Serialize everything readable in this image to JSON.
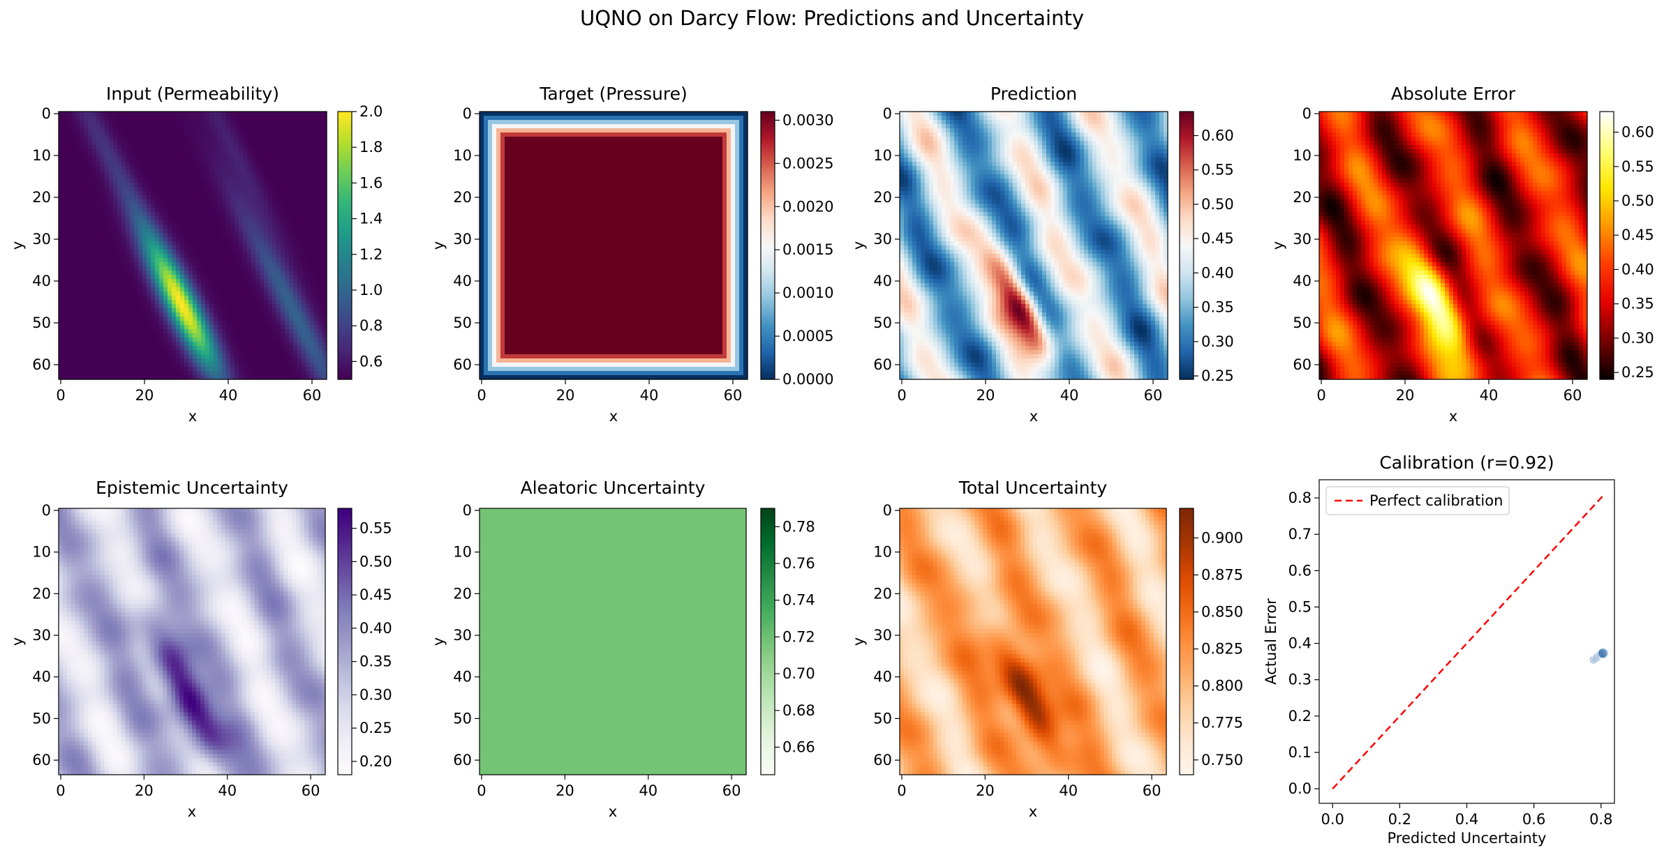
{
  "figure": {
    "title": "UQNO on Darcy Flow: Predictions and Uncertainty"
  },
  "chart_data": [
    {
      "type": "heatmap",
      "title": "Input (Permeability)",
      "xlabel": "x",
      "ylabel": "y",
      "xticks": [
        "0",
        "20",
        "40",
        "60"
      ],
      "yticks": [
        "0",
        "10",
        "20",
        "30",
        "40",
        "50",
        "60"
      ],
      "grid_size": 64,
      "colormap": "viridis",
      "colorbar_range": [
        0.5,
        2.0
      ],
      "colorbar_ticks": [
        "0.6",
        "0.8",
        "1.0",
        "1.2",
        "1.4",
        "1.6",
        "1.8",
        "2.0"
      ],
      "pattern": "input",
      "grid": false
    },
    {
      "type": "heatmap",
      "title": "Target (Pressure)",
      "xlabel": "x",
      "ylabel": "y",
      "xticks": [
        "0",
        "20",
        "40",
        "60"
      ],
      "yticks": [
        "0",
        "10",
        "20",
        "30",
        "40",
        "50",
        "60"
      ],
      "grid_size": 64,
      "colormap": "RdBu_r",
      "colorbar_range": [
        0.0,
        0.0031
      ],
      "colorbar_ticks": [
        "0.0000",
        "0.0005",
        "0.0010",
        "0.0015",
        "0.0020",
        "0.0025",
        "0.0030"
      ],
      "pattern": "target",
      "grid": false
    },
    {
      "type": "heatmap",
      "title": "Prediction",
      "xlabel": "x",
      "ylabel": "y",
      "xticks": [
        "0",
        "20",
        "40",
        "60"
      ],
      "yticks": [
        "0",
        "10",
        "20",
        "30",
        "40",
        "50",
        "60"
      ],
      "grid_size": 64,
      "colormap": "RdBu_r",
      "colorbar_range": [
        0.245,
        0.635
      ],
      "colorbar_ticks": [
        "0.25",
        "0.30",
        "0.35",
        "0.40",
        "0.45",
        "0.50",
        "0.55",
        "0.60"
      ],
      "pattern": "prediction",
      "grid": false
    },
    {
      "type": "heatmap",
      "title": "Absolute Error",
      "xlabel": "x",
      "ylabel": "y",
      "xticks": [
        "0",
        "20",
        "40",
        "60"
      ],
      "yticks": [
        "0",
        "10",
        "20",
        "30",
        "40",
        "50",
        "60"
      ],
      "grid_size": 64,
      "colormap": "hot",
      "colorbar_range": [
        0.24,
        0.63
      ],
      "colorbar_ticks": [
        "0.25",
        "0.30",
        "0.35",
        "0.40",
        "0.45",
        "0.50",
        "0.55",
        "0.60"
      ],
      "pattern": "error",
      "grid": false
    },
    {
      "type": "heatmap",
      "title": "Epistemic Uncertainty",
      "xlabel": "x",
      "ylabel": "y",
      "xticks": [
        "0",
        "20",
        "40",
        "60"
      ],
      "yticks": [
        "0",
        "10",
        "20",
        "30",
        "40",
        "50",
        "60"
      ],
      "grid_size": 64,
      "colormap": "Purples",
      "colorbar_range": [
        0.18,
        0.58
      ],
      "colorbar_ticks": [
        "0.20",
        "0.25",
        "0.30",
        "0.35",
        "0.40",
        "0.45",
        "0.50",
        "0.55"
      ],
      "pattern": "epistemic",
      "grid": false
    },
    {
      "type": "heatmap",
      "title": "Aleatoric Uncertainty",
      "xlabel": "x",
      "ylabel": "y",
      "xticks": [
        "0",
        "20",
        "40",
        "60"
      ],
      "yticks": [
        "0",
        "10",
        "20",
        "30",
        "40",
        "50",
        "60"
      ],
      "grid_size": 64,
      "colormap": "Greens",
      "colorbar_range": [
        0.645,
        0.79
      ],
      "colorbar_ticks": [
        "0.66",
        "0.68",
        "0.70",
        "0.72",
        "0.74",
        "0.76",
        "0.78"
      ],
      "pattern": "aleatoric",
      "grid": false
    },
    {
      "type": "heatmap",
      "title": "Total Uncertainty",
      "xlabel": "x",
      "ylabel": "y",
      "xticks": [
        "0",
        "20",
        "40",
        "60"
      ],
      "yticks": [
        "0",
        "10",
        "20",
        "30",
        "40",
        "50",
        "60"
      ],
      "grid_size": 64,
      "colormap": "Oranges",
      "colorbar_range": [
        0.74,
        0.92
      ],
      "colorbar_ticks": [
        "0.750",
        "0.775",
        "0.800",
        "0.825",
        "0.850",
        "0.875",
        "0.900"
      ],
      "pattern": "total",
      "grid": false
    },
    {
      "type": "scatter",
      "title": "Calibration (r=0.92)",
      "xlabel": "Predicted Uncertainty",
      "ylabel": "Actual Error",
      "xlim": [
        -0.04,
        0.84
      ],
      "ylim": [
        -0.04,
        0.85
      ],
      "xticks": [
        0.0,
        0.2,
        0.4,
        0.6,
        0.8
      ],
      "yticks": [
        0.0,
        0.1,
        0.2,
        0.3,
        0.4,
        0.5,
        0.6,
        0.7,
        0.8
      ],
      "xtick_labels": [
        "0.0",
        "0.2",
        "0.4",
        "0.6",
        "0.8"
      ],
      "ytick_labels": [
        "0.0",
        "0.1",
        "0.2",
        "0.3",
        "0.4",
        "0.5",
        "0.6",
        "0.7",
        "0.8"
      ],
      "points": [
        {
          "x": 0.781,
          "y": 0.357
        },
        {
          "x": 0.786,
          "y": 0.36
        },
        {
          "x": 0.79,
          "y": 0.363
        },
        {
          "x": 0.794,
          "y": 0.366
        },
        {
          "x": 0.798,
          "y": 0.369
        },
        {
          "x": 0.802,
          "y": 0.371
        },
        {
          "x": 0.806,
          "y": 0.373
        }
      ],
      "point_color": "#4a7fb5",
      "reference_line": {
        "label": "Perfect calibration",
        "from": [
          0.0,
          0.0
        ],
        "to": [
          0.81,
          0.81
        ],
        "color": "#ff0000",
        "style": "dashed"
      },
      "legend_position": "top-left",
      "grid": false
    }
  ]
}
